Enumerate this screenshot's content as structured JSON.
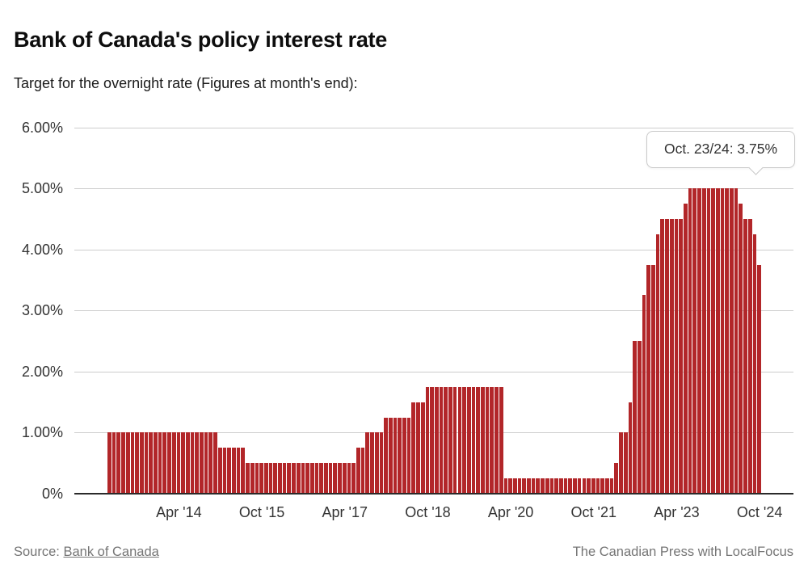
{
  "title": "Bank of Canada's policy interest rate",
  "subtitle": "Target for the overnight rate (Figures at month's end):",
  "tooltip": {
    "label": "Oct. 23/24: 3.75%"
  },
  "footer": {
    "source_label": "Source:",
    "source_link": "Bank of Canada",
    "credit": "The Canadian Press with LocalFocus"
  },
  "colors": {
    "bar": "#b22629",
    "gridline": "#cdcdcd",
    "axis_line": "#2a2a2a",
    "axis_text": "#333333",
    "footer_text": "#757575",
    "tooltip_border": "#c9c9c9"
  },
  "chart_data": {
    "type": "bar",
    "title": "Bank of Canada's policy interest rate",
    "subtitle": "Target for the overnight rate (Figures at month's end):",
    "xlabel": "",
    "ylabel": "",
    "unit": "%",
    "ylim": [
      0,
      6
    ],
    "grid": true,
    "legend": false,
    "bar_color": "#b22629",
    "y_ticks": [
      {
        "value": 0,
        "label": "0%"
      },
      {
        "value": 1,
        "label": "1.00%"
      },
      {
        "value": 2,
        "label": "2.00%"
      },
      {
        "value": 3,
        "label": "3.00%"
      },
      {
        "value": 4,
        "label": "4.00%"
      },
      {
        "value": 5,
        "label": "5.00%"
      },
      {
        "value": 6,
        "label": "6.00%"
      }
    ],
    "x_ticks": [
      {
        "index": 15,
        "label": "Apr '14"
      },
      {
        "index": 33,
        "label": "Oct '15"
      },
      {
        "index": 51,
        "label": "Apr '17"
      },
      {
        "index": 69,
        "label": "Oct '18"
      },
      {
        "index": 87,
        "label": "Apr '20"
      },
      {
        "index": 105,
        "label": "Oct '21"
      },
      {
        "index": 123,
        "label": "Apr '23"
      },
      {
        "index": 141,
        "label": "Oct '24"
      }
    ],
    "annotation": {
      "text": "Oct. 23/24: 3.75%",
      "bar_index": 141
    },
    "values": [
      1,
      1,
      1,
      1,
      1,
      1,
      1,
      1,
      1,
      1,
      1,
      1,
      1,
      1,
      1,
      1,
      1,
      1,
      1,
      1,
      1,
      1,
      1,
      1,
      0.75,
      0.75,
      0.75,
      0.75,
      0.75,
      0.75,
      0.5,
      0.5,
      0.5,
      0.5,
      0.5,
      0.5,
      0.5,
      0.5,
      0.5,
      0.5,
      0.5,
      0.5,
      0.5,
      0.5,
      0.5,
      0.5,
      0.5,
      0.5,
      0.5,
      0.5,
      0.5,
      0.5,
      0.5,
      0.5,
      0.75,
      0.75,
      1,
      1,
      1,
      1,
      1.25,
      1.25,
      1.25,
      1.25,
      1.25,
      1.25,
      1.5,
      1.5,
      1.5,
      1.75,
      1.75,
      1.75,
      1.75,
      1.75,
      1.75,
      1.75,
      1.75,
      1.75,
      1.75,
      1.75,
      1.75,
      1.75,
      1.75,
      1.75,
      1.75,
      1.75,
      0.25,
      0.25,
      0.25,
      0.25,
      0.25,
      0.25,
      0.25,
      0.25,
      0.25,
      0.25,
      0.25,
      0.25,
      0.25,
      0.25,
      0.25,
      0.25,
      0.25,
      0.25,
      0.25,
      0.25,
      0.25,
      0.25,
      0.25,
      0.25,
      0.5,
      1,
      1,
      1.5,
      2.5,
      2.5,
      3.25,
      3.75,
      3.75,
      4.25,
      4.5,
      4.5,
      4.5,
      4.5,
      4.5,
      4.75,
      5,
      5,
      5,
      5,
      5,
      5,
      5,
      5,
      5,
      5,
      5,
      4.75,
      4.5,
      4.5,
      4.25,
      3.75
    ]
  }
}
